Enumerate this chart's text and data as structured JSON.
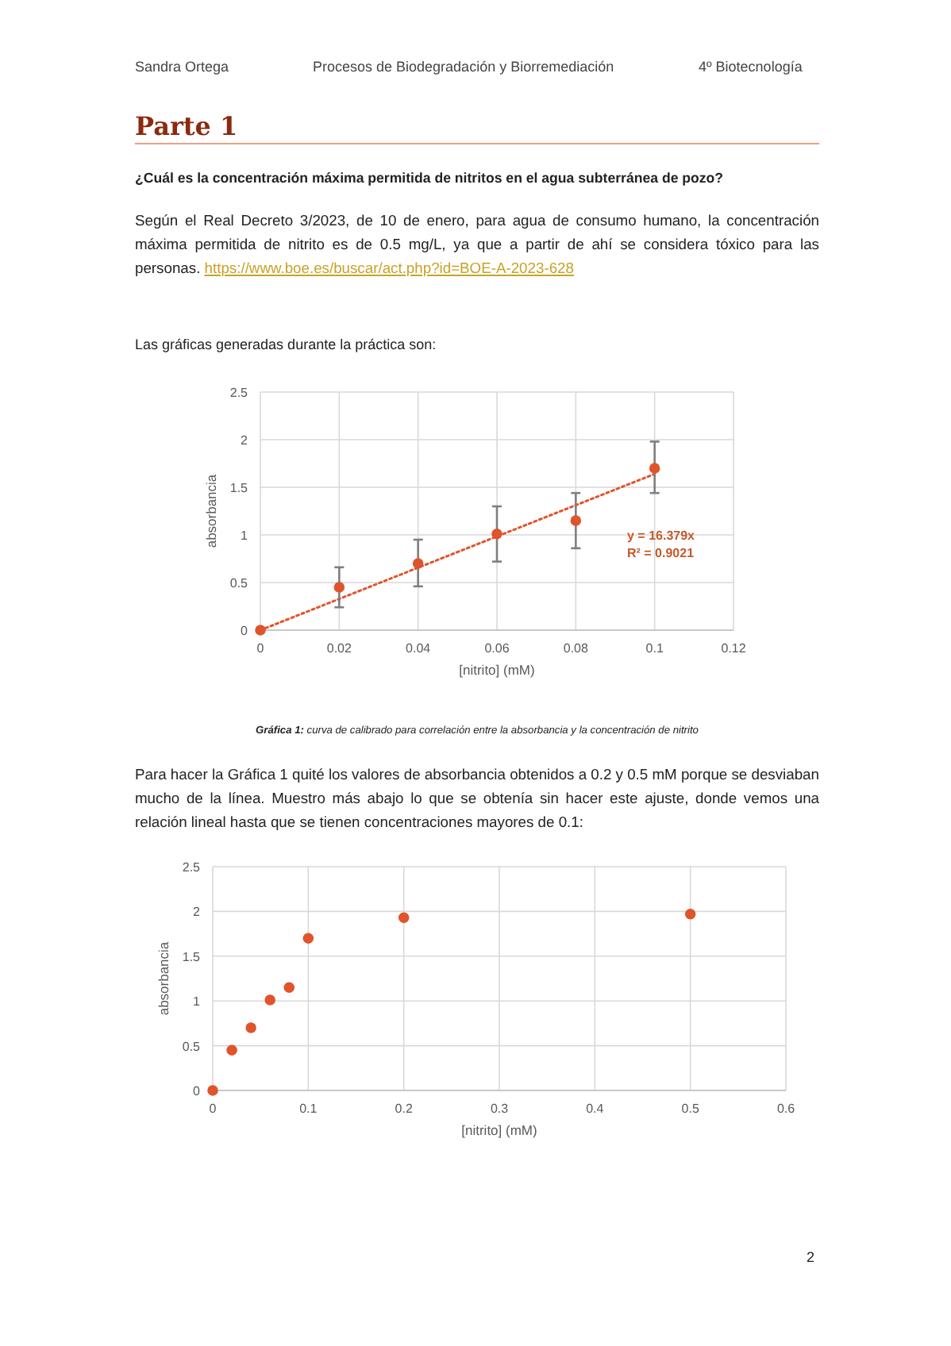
{
  "chart_data": [
    {
      "type": "scatter",
      "title": "Parte 1",
      "subtitle": "¿Cuál es la concentración máxima permitida de nitritos en el agua subterránea de pozo?",
      "xlabel": "[nitrito] (mM)",
      "ylabel": "absorbancia",
      "x": [
        0,
        0.02,
        0.04,
        0.06,
        0.08,
        0.1
      ],
      "series": [
        {
          "color": "#e0542b",
          "values": [
            0,
            0.45,
            0.7,
            1.01,
            1.15,
            1.7
          ],
          "errors": [
            null,
            [
              0.24,
              0.66
            ],
            [
              0.46,
              0.95
            ],
            [
              0.72,
              1.3
            ],
            [
              0.86,
              1.44
            ],
            [
              1.44,
              1.98
            ]
          ]
        },
        {
          "type": "line",
          "color": "#e0542b",
          "line_style": "dotted",
          "marker": "none",
          "x": [
            0,
            0.1
          ],
          "values": [
            0,
            1.64
          ]
        }
      ],
      "xlim": [
        0,
        0.12
      ],
      "ylim": [
        0,
        2.5
      ],
      "xticks": [
        0,
        0.02,
        0.04,
        0.06,
        0.08,
        0.1,
        0.12
      ],
      "yticks": [
        0,
        0.5,
        1,
        1.5,
        2,
        2.5
      ],
      "grid": true,
      "marker": "circle",
      "annotations": [
        "Sandra Ortega",
        "Procesos de Biodegradación y Biorremediación",
        "4º Biotecnología",
        "Según el Real Decreto 3/2023, de 10 de enero, para agua de consumo humano, la concentración máxima permitida de nitrito es de 0.5 mg/L, ya que a partir de ahí se considera tóxico para las personas.",
        "https://www.boe.es/buscar/act.php?id=BOE-A-2023-628",
        "Las gráficas generadas durante la práctica son:",
        "y = 16.379x",
        "R² = 0.9021",
        "Gráfica 1:",
        "curva de calibrado para correlación entre la absorbancia y la concentración de nitrito"
      ]
    },
    {
      "type": "scatter",
      "xlabel": "[nitrito] (mM)",
      "ylabel": "absorbancia",
      "x": [
        0,
        0.02,
        0.04,
        0.06,
        0.08,
        0.1,
        0.2,
        0.5
      ],
      "series": [
        {
          "color": "#e0542b",
          "values": [
            0,
            0.45,
            0.7,
            1.01,
            1.15,
            1.7,
            1.93,
            1.97
          ]
        }
      ],
      "xlim": [
        0,
        0.6
      ],
      "ylim": [
        0,
        2.5
      ],
      "xticks": [
        0,
        0.1,
        0.2,
        0.3,
        0.4,
        0.5,
        0.6
      ],
      "yticks": [
        0,
        0.5,
        1,
        1.5,
        2,
        2.5
      ],
      "grid": true,
      "marker": "circle",
      "annotations": [
        "Para hacer la Gráfica 1 quité los valores de absorbancia obtenidos a 0.2 y 0.5 mM porque se desviaban mucho de la línea. Muestro más abajo lo que se obtenía sin hacer este ajuste, donde vemos una relación lineal hasta que se tienen concentraciones mayores de 0.1:",
        "2"
      ]
    }
  ]
}
